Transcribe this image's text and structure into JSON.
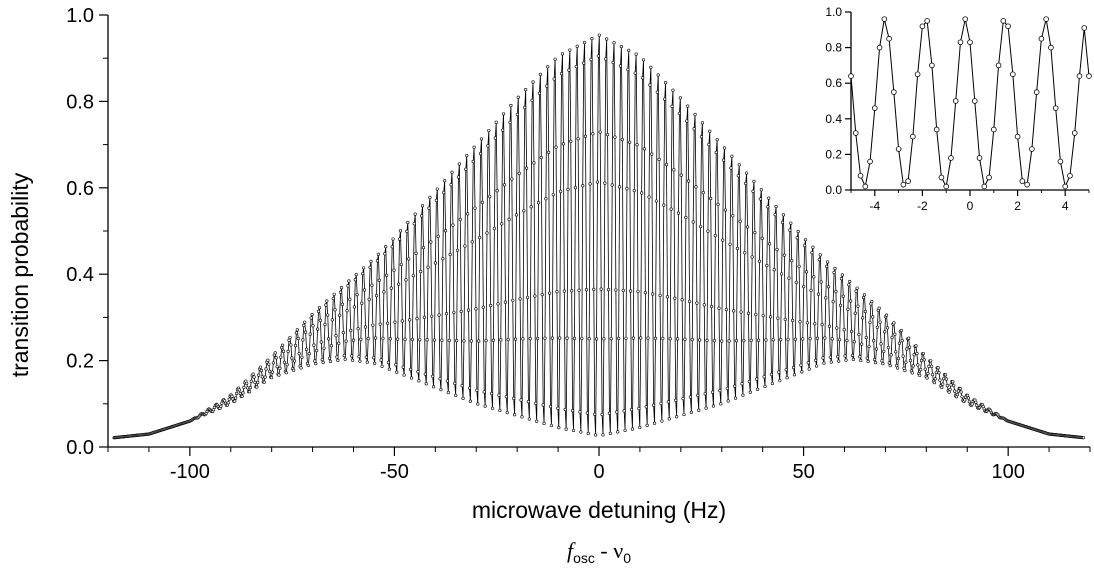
{
  "chart_data": [
    {
      "type": "line",
      "role": "main",
      "title": "",
      "xlabel": "microwave detuning (Hz)",
      "xlabel_secondary": {
        "symbol": "f",
        "symbol_sub": "osc",
        "operator": " - ",
        "symbol2": "ν",
        "symbol2_sub": "0"
      },
      "ylabel": "transition probability",
      "xlim": [
        -120,
        120
      ],
      "ylim": [
        0,
        1
      ],
      "xticks": [
        -100,
        -50,
        0,
        50,
        100
      ],
      "xtick_labels": [
        "-100",
        "-50",
        "0",
        "50",
        "100"
      ],
      "yticks": [
        0,
        0.2,
        0.4,
        0.6,
        0.8,
        1.0
      ],
      "ytick_labels": [
        "0.0",
        "0.2",
        "0.4",
        "0.6",
        "0.8",
        "1.0"
      ],
      "grid": false,
      "marker": "open-circle",
      "line_color": "#000000",
      "fringe_period_hz": 1.8,
      "fringe_count_shown": 133,
      "envelope": {
        "x": [
          -120,
          -110,
          -100,
          -90,
          -80,
          -70,
          -62,
          -55,
          -50,
          -40,
          -30,
          -20,
          -10,
          0,
          10,
          20,
          30,
          40,
          50,
          55,
          62,
          70,
          80,
          90,
          100,
          110,
          120
        ],
        "upper": [
          0.02,
          0.03,
          0.06,
          0.12,
          0.21,
          0.31,
          0.38,
          0.44,
          0.49,
          0.6,
          0.71,
          0.82,
          0.92,
          0.97,
          0.92,
          0.82,
          0.71,
          0.6,
          0.49,
          0.44,
          0.38,
          0.31,
          0.21,
          0.12,
          0.06,
          0.03,
          0.02
        ],
        "lower": [
          0.02,
          0.03,
          0.06,
          0.1,
          0.16,
          0.19,
          0.2,
          0.19,
          0.17,
          0.13,
          0.09,
          0.06,
          0.03,
          0.01,
          0.03,
          0.06,
          0.09,
          0.13,
          0.17,
          0.19,
          0.2,
          0.19,
          0.16,
          0.1,
          0.06,
          0.03,
          0.02
        ]
      }
    },
    {
      "type": "line",
      "role": "inset",
      "title": "",
      "xlabel": "",
      "ylabel": "",
      "xlim": [
        -5,
        5
      ],
      "ylim": [
        0,
        1
      ],
      "xticks": [
        -4,
        -2,
        0,
        2,
        4
      ],
      "xtick_labels": [
        "-4",
        "-2",
        "0",
        "2",
        "4"
      ],
      "yticks": [
        0,
        0.2,
        0.4,
        0.6,
        0.8,
        1.0
      ],
      "ytick_labels": [
        "0.0",
        "0.2",
        "0.4",
        "0.6",
        "0.8",
        "1.0"
      ],
      "grid": false,
      "marker": "open-circle",
      "period": 1.8,
      "x": [
        -5.0,
        -4.8,
        -4.6,
        -4.4,
        -4.2,
        -4.0,
        -3.8,
        -3.6,
        -3.4,
        -3.2,
        -3.0,
        -2.8,
        -2.6,
        -2.4,
        -2.2,
        -2.0,
        -1.8,
        -1.6,
        -1.4,
        -1.2,
        -1.0,
        -0.8,
        -0.6,
        -0.4,
        -0.2,
        0.0,
        0.2,
        0.4,
        0.6,
        0.8,
        1.0,
        1.2,
        1.4,
        1.6,
        1.8,
        2.0,
        2.2,
        2.4,
        2.6,
        2.8,
        3.0,
        3.2,
        3.4,
        3.6,
        3.8,
        4.0,
        4.2,
        4.4,
        4.6,
        4.8,
        5.0
      ],
      "y": [
        0.64,
        0.32,
        0.08,
        0.02,
        0.16,
        0.46,
        0.8,
        0.96,
        0.85,
        0.55,
        0.23,
        0.03,
        0.05,
        0.3,
        0.65,
        0.92,
        0.95,
        0.7,
        0.34,
        0.07,
        0.02,
        0.18,
        0.5,
        0.83,
        0.96,
        0.83,
        0.5,
        0.18,
        0.02,
        0.07,
        0.34,
        0.7,
        0.95,
        0.92,
        0.65,
        0.3,
        0.05,
        0.03,
        0.23,
        0.55,
        0.85,
        0.96,
        0.8,
        0.46,
        0.16,
        0.02,
        0.08,
        0.32,
        0.64,
        0.91,
        0.64
      ]
    }
  ]
}
